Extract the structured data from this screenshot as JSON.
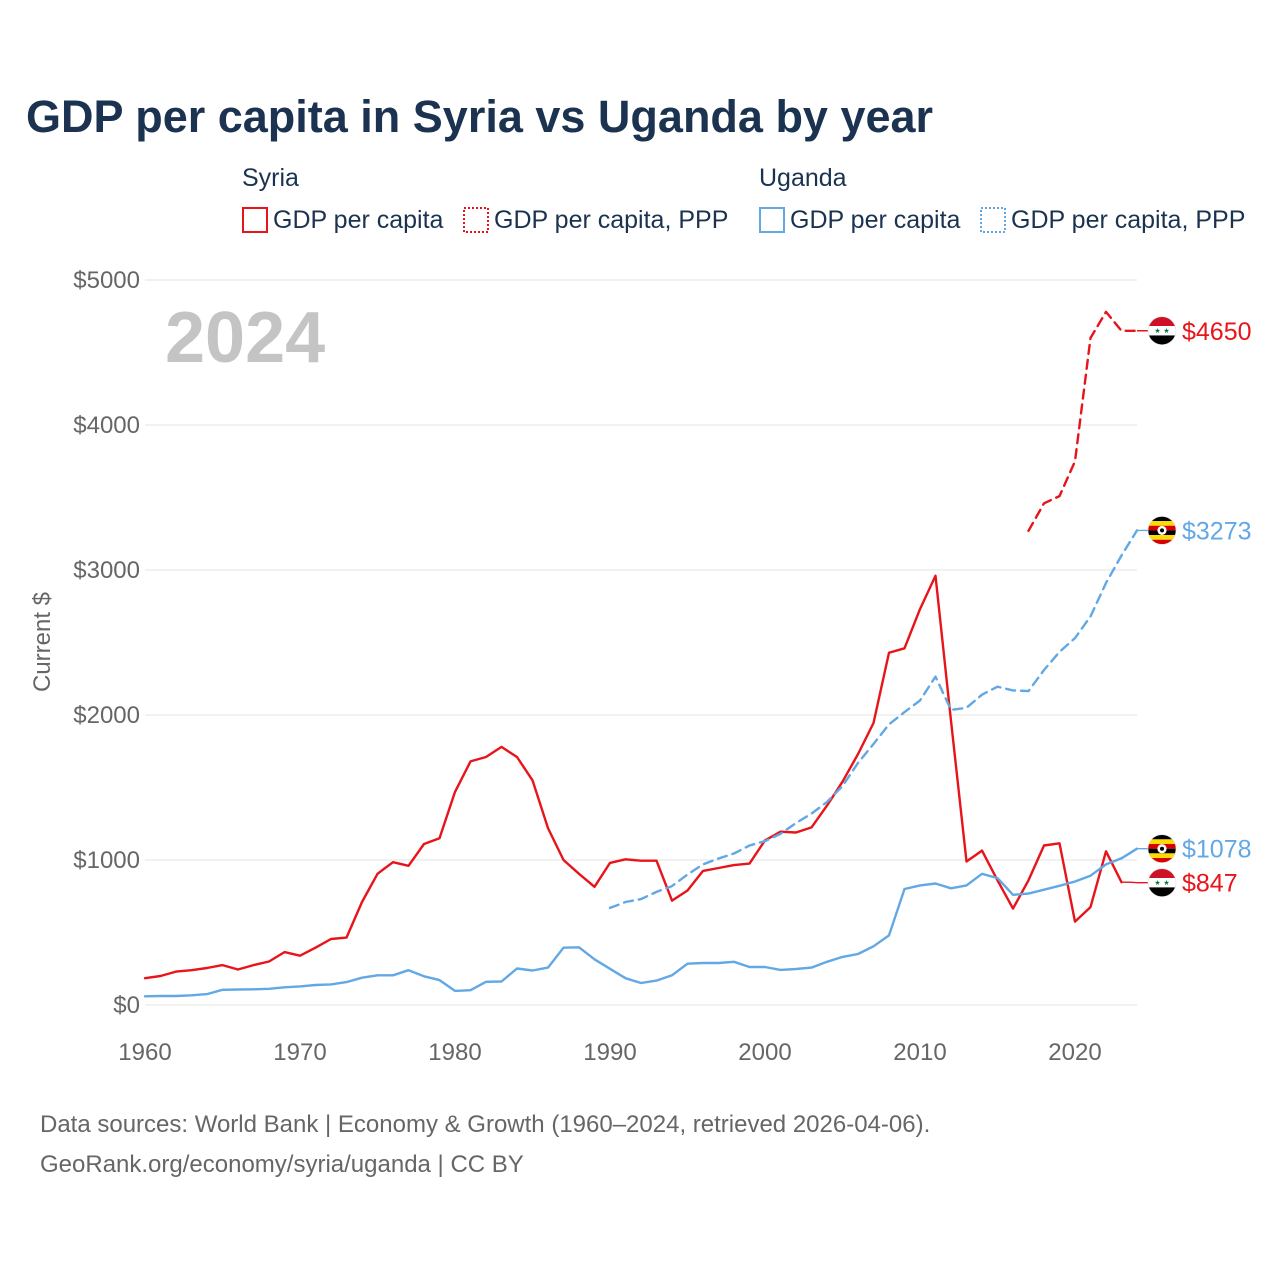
{
  "title": "GDP per capita in Syria vs Uganda by year",
  "legend": {
    "groups": [
      {
        "name": "Syria",
        "color": "#e8141a",
        "items": [
          {
            "label": "GDP per capita",
            "style": "solid"
          },
          {
            "label": "GDP per capita, PPP",
            "style": "dotted"
          }
        ]
      },
      {
        "name": "Uganda",
        "color": "#62a8e5",
        "items": [
          {
            "label": "GDP per capita",
            "style": "solid"
          },
          {
            "label": "GDP per capita, PPP",
            "style": "dotted"
          }
        ]
      }
    ]
  },
  "year_watermark": "2024",
  "footer": {
    "line1": "Data sources: World Bank | Economy & Growth (1960–2024, retrieved 2026-04-06).",
    "line2": "GeoRank.org/economy/syria/uganda | CC BY"
  },
  "chart_data": {
    "type": "line",
    "title": "GDP per capita in Syria vs Uganda by year",
    "xlabel": "",
    "ylabel": "Current $",
    "xlim": [
      1960,
      2024
    ],
    "ylim": [
      0,
      5000
    ],
    "x_ticks": [
      1960,
      1970,
      1980,
      1990,
      2000,
      2010,
      2020
    ],
    "x_tick_labels": [
      "1960",
      "1970",
      "1980",
      "1990",
      "2000",
      "2010",
      "2020"
    ],
    "y_ticks": [
      0,
      1000,
      2000,
      3000,
      4000,
      5000
    ],
    "y_tick_labels": [
      "$0",
      "$1000",
      "$2000",
      "$3000",
      "$4000",
      "$5000"
    ],
    "grid": true,
    "series": [
      {
        "name": "Syria GDP per capita",
        "country": "Syria",
        "color": "#e8141a",
        "dash": "solid",
        "x": [
          1960,
          1961,
          1962,
          1963,
          1964,
          1965,
          1966,
          1967,
          1968,
          1969,
          1970,
          1971,
          1972,
          1973,
          1974,
          1975,
          1976,
          1977,
          1978,
          1979,
          1980,
          1981,
          1982,
          1983,
          1984,
          1985,
          1986,
          1987,
          1988,
          1989,
          1990,
          1991,
          1992,
          1993,
          1994,
          1995,
          1996,
          1997,
          1998,
          1999,
          2000,
          2001,
          2002,
          2003,
          2004,
          2005,
          2006,
          2007,
          2008,
          2009,
          2010,
          2011,
          2012,
          2013,
          2014,
          2015,
          2016,
          2017,
          2018,
          2019,
          2020,
          2021,
          2022,
          2023
        ],
        "y": [
          185,
          200,
          230,
          240,
          255,
          275,
          245,
          275,
          300,
          365,
          340,
          395,
          455,
          465,
          710,
          905,
          985,
          960,
          1110,
          1150,
          1470,
          1680,
          1710,
          1780,
          1710,
          1550,
          1220,
          1000,
          905,
          815,
          980,
          1005,
          995,
          995,
          720,
          790,
          925,
          945,
          965,
          975,
          1135,
          1195,
          1190,
          1225,
          1375,
          1540,
          1730,
          1945,
          2430,
          2460,
          2730,
          2960,
          1960,
          990,
          1065,
          860,
          665,
          860,
          1100,
          1115,
          575,
          675,
          1060,
          847
        ],
        "end_label": "$847",
        "end_value": 847
      },
      {
        "name": "Syria GDP per capita, PPP",
        "country": "Syria",
        "color": "#e8141a",
        "dash": "dashed",
        "x": [
          2017,
          2018,
          2019,
          2020,
          2021,
          2022,
          2023,
          2024
        ],
        "y": [
          3270,
          3460,
          3510,
          3750,
          4600,
          4780,
          4650,
          4650
        ],
        "end_label": "$4650",
        "end_value": 4650
      },
      {
        "name": "Uganda GDP per capita",
        "country": "Uganda",
        "color": "#62a8e5",
        "dash": "solid",
        "x": [
          1960,
          1961,
          1962,
          1963,
          1964,
          1965,
          1966,
          1967,
          1968,
          1969,
          1970,
          1971,
          1972,
          1973,
          1974,
          1975,
          1976,
          1977,
          1978,
          1979,
          1980,
          1981,
          1982,
          1983,
          1984,
          1985,
          1986,
          1987,
          1988,
          1989,
          1990,
          1991,
          1992,
          1993,
          1994,
          1995,
          1996,
          1997,
          1998,
          1999,
          2000,
          2001,
          2002,
          2003,
          2004,
          2005,
          2006,
          2007,
          2008,
          2009,
          2010,
          2011,
          2012,
          2013,
          2014,
          2015,
          2016,
          2017,
          2018,
          2019,
          2020,
          2021,
          2022,
          2023,
          2024
        ],
        "y": [
          60,
          62,
          62,
          67,
          75,
          105,
          107,
          108,
          112,
          122,
          128,
          138,
          142,
          158,
          188,
          205,
          205,
          240,
          198,
          172,
          97,
          102,
          160,
          162,
          252,
          238,
          258,
          395,
          398,
          315,
          250,
          185,
          152,
          168,
          205,
          285,
          290,
          290,
          298,
          262,
          262,
          242,
          248,
          258,
          298,
          332,
          352,
          405,
          480,
          800,
          825,
          838,
          805,
          825,
          905,
          875,
          760,
          768,
          795,
          822,
          852,
          892,
          970,
          1012,
          1078
        ],
        "end_label": "$1078",
        "end_value": 1078
      },
      {
        "name": "Uganda GDP per capita, PPP",
        "country": "Uganda",
        "color": "#62a8e5",
        "dash": "dashed",
        "x": [
          1990,
          1991,
          1992,
          1993,
          1994,
          1995,
          1996,
          1997,
          1998,
          1999,
          2000,
          2001,
          2002,
          2003,
          2004,
          2005,
          2006,
          2007,
          2008,
          2009,
          2010,
          2011,
          2012,
          2013,
          2014,
          2015,
          2016,
          2017,
          2018,
          2019,
          2020,
          2021,
          2022,
          2023,
          2024
        ],
        "y": [
          670,
          710,
          730,
          780,
          820,
          900,
          970,
          1010,
          1045,
          1100,
          1130,
          1180,
          1255,
          1320,
          1400,
          1510,
          1670,
          1800,
          1935,
          2020,
          2100,
          2265,
          2035,
          2050,
          2140,
          2195,
          2170,
          2165,
          2310,
          2435,
          2530,
          2680,
          2910,
          3100,
          3273
        ],
        "end_label": "$3273",
        "end_value": 3273
      }
    ]
  }
}
